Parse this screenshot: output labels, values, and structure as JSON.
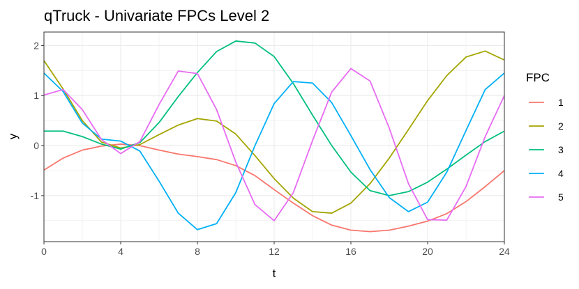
{
  "chart_data": {
    "type": "line",
    "title": "qTruck - Univariate FPCs Level 2",
    "xlabel": "t",
    "ylabel": "y",
    "xlim": [
      0,
      24
    ],
    "ylim": [
      -1.92,
      2.27
    ],
    "x_ticks": [
      0,
      4,
      8,
      12,
      16,
      20,
      24
    ],
    "y_ticks": [
      -1,
      0,
      1,
      2
    ],
    "grid": true,
    "legend": {
      "title": "FPC",
      "position": "right"
    },
    "x": [
      0,
      1,
      2,
      3,
      4,
      5,
      6,
      7,
      8,
      9,
      10,
      11,
      12,
      13,
      14,
      15,
      16,
      17,
      18,
      19,
      20,
      21,
      22,
      23,
      24
    ],
    "series": [
      {
        "name": "1",
        "color": "#F8766D",
        "values": [
          -0.49,
          -0.25,
          -0.09,
          -0.01,
          0.03,
          0.0,
          -0.09,
          -0.17,
          -0.22,
          -0.28,
          -0.4,
          -0.6,
          -0.88,
          -1.15,
          -1.4,
          -1.59,
          -1.69,
          -1.72,
          -1.69,
          -1.61,
          -1.51,
          -1.36,
          -1.12,
          -0.82,
          -0.5
        ]
      },
      {
        "name": "2",
        "color": "#A3A500",
        "values": [
          1.7,
          1.13,
          0.5,
          0.07,
          -0.05,
          0.02,
          0.22,
          0.41,
          0.54,
          0.49,
          0.23,
          -0.2,
          -0.66,
          -1.05,
          -1.32,
          -1.35,
          -1.15,
          -0.76,
          -0.25,
          0.32,
          0.9,
          1.4,
          1.77,
          1.89,
          1.71
        ]
      },
      {
        "name": "3",
        "color": "#00BF7D",
        "values": [
          0.29,
          0.29,
          0.18,
          0.03,
          -0.07,
          0.06,
          0.46,
          0.98,
          1.46,
          1.88,
          2.09,
          2.05,
          1.78,
          1.24,
          0.61,
          0.0,
          -0.53,
          -0.9,
          -1.0,
          -0.92,
          -0.73,
          -0.47,
          -0.19,
          0.08,
          0.29
        ]
      },
      {
        "name": "4",
        "color": "#00B0F6",
        "values": [
          1.45,
          1.08,
          0.45,
          0.13,
          0.09,
          -0.11,
          -0.71,
          -1.35,
          -1.68,
          -1.56,
          -0.94,
          0.0,
          0.84,
          1.28,
          1.25,
          0.86,
          0.2,
          -0.48,
          -1.04,
          -1.32,
          -1.13,
          -0.53,
          0.3,
          1.12,
          1.45
        ]
      },
      {
        "name": "5",
        "color": "#E76BF3",
        "values": [
          1.01,
          1.12,
          0.72,
          0.12,
          -0.16,
          0.08,
          0.82,
          1.49,
          1.44,
          0.72,
          -0.33,
          -1.18,
          -1.5,
          -0.94,
          0.1,
          1.07,
          1.54,
          1.29,
          0.35,
          -0.76,
          -1.48,
          -1.49,
          -0.82,
          0.18,
          1.0
        ]
      }
    ]
  }
}
